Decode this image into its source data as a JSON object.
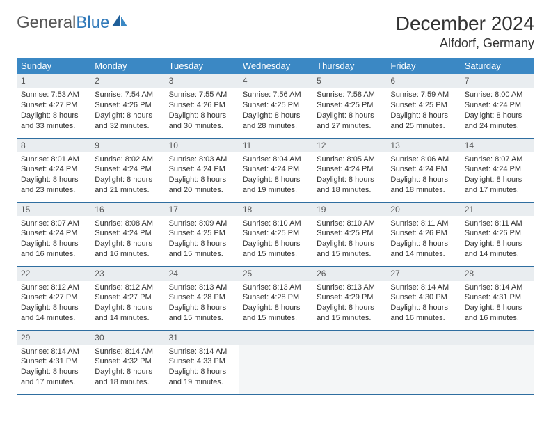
{
  "brand": {
    "part1": "General",
    "part2": "Blue"
  },
  "title": "December 2024",
  "location": "Alfdorf, Germany",
  "colors": {
    "header_bg": "#3b88c4",
    "header_text": "#ffffff",
    "daynum_bg": "#e9edf0",
    "row_border": "#2f6ea0",
    "brand_blue": "#2f78b9",
    "text": "#333333",
    "logo_gray": "#555555"
  },
  "weekdays": [
    "Sunday",
    "Monday",
    "Tuesday",
    "Wednesday",
    "Thursday",
    "Friday",
    "Saturday"
  ],
  "weeks": [
    [
      {
        "n": "1",
        "sr": "Sunrise: 7:53 AM",
        "ss": "Sunset: 4:27 PM",
        "dl": "Daylight: 8 hours and 33 minutes."
      },
      {
        "n": "2",
        "sr": "Sunrise: 7:54 AM",
        "ss": "Sunset: 4:26 PM",
        "dl": "Daylight: 8 hours and 32 minutes."
      },
      {
        "n": "3",
        "sr": "Sunrise: 7:55 AM",
        "ss": "Sunset: 4:26 PM",
        "dl": "Daylight: 8 hours and 30 minutes."
      },
      {
        "n": "4",
        "sr": "Sunrise: 7:56 AM",
        "ss": "Sunset: 4:25 PM",
        "dl": "Daylight: 8 hours and 28 minutes."
      },
      {
        "n": "5",
        "sr": "Sunrise: 7:58 AM",
        "ss": "Sunset: 4:25 PM",
        "dl": "Daylight: 8 hours and 27 minutes."
      },
      {
        "n": "6",
        "sr": "Sunrise: 7:59 AM",
        "ss": "Sunset: 4:25 PM",
        "dl": "Daylight: 8 hours and 25 minutes."
      },
      {
        "n": "7",
        "sr": "Sunrise: 8:00 AM",
        "ss": "Sunset: 4:24 PM",
        "dl": "Daylight: 8 hours and 24 minutes."
      }
    ],
    [
      {
        "n": "8",
        "sr": "Sunrise: 8:01 AM",
        "ss": "Sunset: 4:24 PM",
        "dl": "Daylight: 8 hours and 23 minutes."
      },
      {
        "n": "9",
        "sr": "Sunrise: 8:02 AM",
        "ss": "Sunset: 4:24 PM",
        "dl": "Daylight: 8 hours and 21 minutes."
      },
      {
        "n": "10",
        "sr": "Sunrise: 8:03 AM",
        "ss": "Sunset: 4:24 PM",
        "dl": "Daylight: 8 hours and 20 minutes."
      },
      {
        "n": "11",
        "sr": "Sunrise: 8:04 AM",
        "ss": "Sunset: 4:24 PM",
        "dl": "Daylight: 8 hours and 19 minutes."
      },
      {
        "n": "12",
        "sr": "Sunrise: 8:05 AM",
        "ss": "Sunset: 4:24 PM",
        "dl": "Daylight: 8 hours and 18 minutes."
      },
      {
        "n": "13",
        "sr": "Sunrise: 8:06 AM",
        "ss": "Sunset: 4:24 PM",
        "dl": "Daylight: 8 hours and 18 minutes."
      },
      {
        "n": "14",
        "sr": "Sunrise: 8:07 AM",
        "ss": "Sunset: 4:24 PM",
        "dl": "Daylight: 8 hours and 17 minutes."
      }
    ],
    [
      {
        "n": "15",
        "sr": "Sunrise: 8:07 AM",
        "ss": "Sunset: 4:24 PM",
        "dl": "Daylight: 8 hours and 16 minutes."
      },
      {
        "n": "16",
        "sr": "Sunrise: 8:08 AM",
        "ss": "Sunset: 4:24 PM",
        "dl": "Daylight: 8 hours and 16 minutes."
      },
      {
        "n": "17",
        "sr": "Sunrise: 8:09 AM",
        "ss": "Sunset: 4:25 PM",
        "dl": "Daylight: 8 hours and 15 minutes."
      },
      {
        "n": "18",
        "sr": "Sunrise: 8:10 AM",
        "ss": "Sunset: 4:25 PM",
        "dl": "Daylight: 8 hours and 15 minutes."
      },
      {
        "n": "19",
        "sr": "Sunrise: 8:10 AM",
        "ss": "Sunset: 4:25 PM",
        "dl": "Daylight: 8 hours and 15 minutes."
      },
      {
        "n": "20",
        "sr": "Sunrise: 8:11 AM",
        "ss": "Sunset: 4:26 PM",
        "dl": "Daylight: 8 hours and 14 minutes."
      },
      {
        "n": "21",
        "sr": "Sunrise: 8:11 AM",
        "ss": "Sunset: 4:26 PM",
        "dl": "Daylight: 8 hours and 14 minutes."
      }
    ],
    [
      {
        "n": "22",
        "sr": "Sunrise: 8:12 AM",
        "ss": "Sunset: 4:27 PM",
        "dl": "Daylight: 8 hours and 14 minutes."
      },
      {
        "n": "23",
        "sr": "Sunrise: 8:12 AM",
        "ss": "Sunset: 4:27 PM",
        "dl": "Daylight: 8 hours and 14 minutes."
      },
      {
        "n": "24",
        "sr": "Sunrise: 8:13 AM",
        "ss": "Sunset: 4:28 PM",
        "dl": "Daylight: 8 hours and 15 minutes."
      },
      {
        "n": "25",
        "sr": "Sunrise: 8:13 AM",
        "ss": "Sunset: 4:28 PM",
        "dl": "Daylight: 8 hours and 15 minutes."
      },
      {
        "n": "26",
        "sr": "Sunrise: 8:13 AM",
        "ss": "Sunset: 4:29 PM",
        "dl": "Daylight: 8 hours and 15 minutes."
      },
      {
        "n": "27",
        "sr": "Sunrise: 8:14 AM",
        "ss": "Sunset: 4:30 PM",
        "dl": "Daylight: 8 hours and 16 minutes."
      },
      {
        "n": "28",
        "sr": "Sunrise: 8:14 AM",
        "ss": "Sunset: 4:31 PM",
        "dl": "Daylight: 8 hours and 16 minutes."
      }
    ],
    [
      {
        "n": "29",
        "sr": "Sunrise: 8:14 AM",
        "ss": "Sunset: 4:31 PM",
        "dl": "Daylight: 8 hours and 17 minutes."
      },
      {
        "n": "30",
        "sr": "Sunrise: 8:14 AM",
        "ss": "Sunset: 4:32 PM",
        "dl": "Daylight: 8 hours and 18 minutes."
      },
      {
        "n": "31",
        "sr": "Sunrise: 8:14 AM",
        "ss": "Sunset: 4:33 PM",
        "dl": "Daylight: 8 hours and 19 minutes."
      },
      {
        "empty": true
      },
      {
        "empty": true
      },
      {
        "empty": true
      },
      {
        "empty": true
      }
    ]
  ]
}
